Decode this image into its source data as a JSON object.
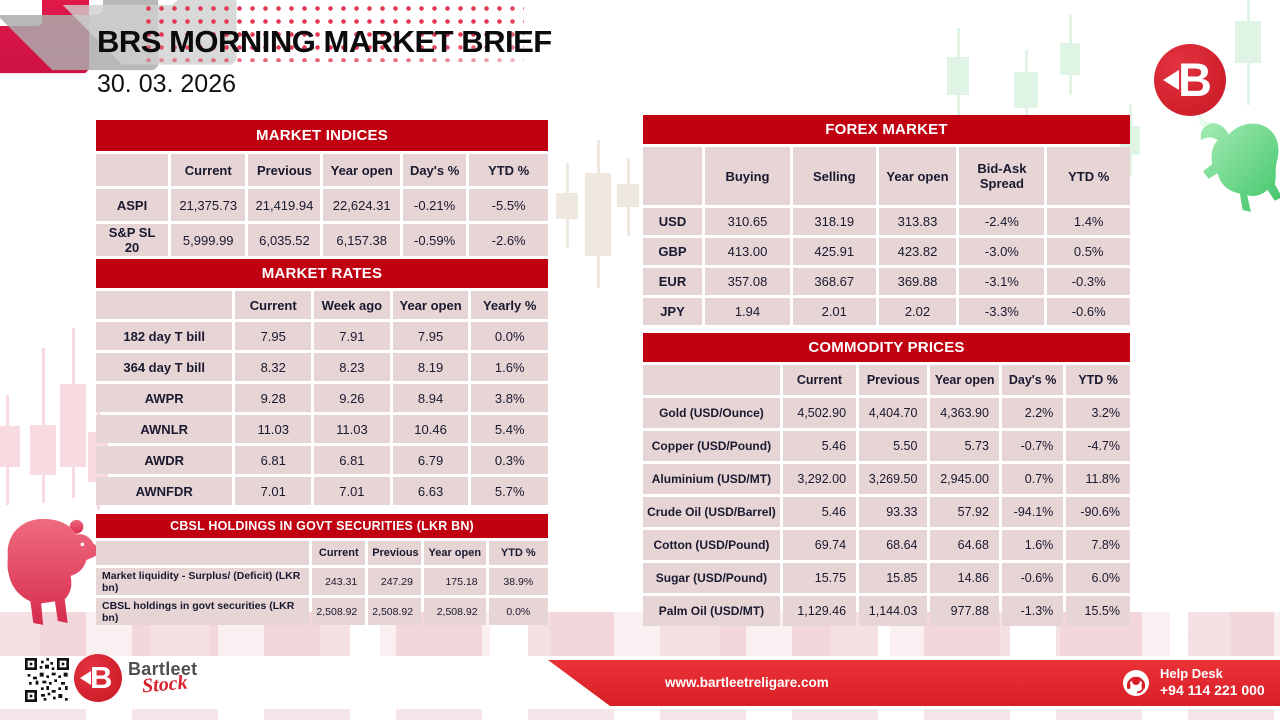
{
  "header": {
    "title": "BRS MORNING MARKET BRIEF",
    "date": "30. 03. 2026"
  },
  "tables": {
    "market_indices": {
      "title": "MARKET INDICES",
      "columns": [
        "",
        "Current",
        "Previous",
        "Year open",
        "Day's %",
        "YTD %"
      ],
      "rows": [
        {
          "label": "ASPI",
          "values": [
            "21,375.73",
            "21,419.94",
            "22,624.31",
            "-0.21%",
            "-5.5%"
          ]
        },
        {
          "label": "S&P SL 20",
          "values": [
            "5,999.99",
            "6,035.52",
            "6,157.38",
            "-0.59%",
            "-2.6%"
          ]
        }
      ]
    },
    "market_rates": {
      "title": "MARKET RATES",
      "columns": [
        "",
        "Current",
        "Week ago",
        "Year open",
        "Yearly %"
      ],
      "rows": [
        {
          "label": "182 day T bill",
          "values": [
            "7.95",
            "7.91",
            "7.95",
            "0.0%"
          ]
        },
        {
          "label": "364 day T bill",
          "values": [
            "8.32",
            "8.23",
            "8.19",
            "1.6%"
          ]
        },
        {
          "label": "AWPR",
          "values": [
            "9.28",
            "9.26",
            "8.94",
            "3.8%"
          ]
        },
        {
          "label": "AWNLR",
          "values": [
            "11.03",
            "11.03",
            "10.46",
            "5.4%"
          ]
        },
        {
          "label": "AWDR",
          "values": [
            "6.81",
            "6.81",
            "6.79",
            "0.3%"
          ]
        },
        {
          "label": "AWNFDR",
          "values": [
            "7.01",
            "7.01",
            "6.63",
            "5.7%"
          ]
        }
      ]
    },
    "cbsl": {
      "title": "CBSL HOLDINGS IN GOVT SECURITIES (LKR BN)",
      "columns": [
        "",
        "Current",
        "Previous",
        "Year open",
        "YTD %"
      ],
      "rows": [
        {
          "label": "Market liquidity - Surplus/ (Deficit) (LKR bn)",
          "values": [
            "243.31",
            "247.29",
            "175.18",
            "38.9%"
          ]
        },
        {
          "label": "CBSL holdings in govt securities (LKR bn)",
          "values": [
            "2,508.92",
            "2,508.92",
            "2,508.92",
            "0.0%"
          ]
        }
      ]
    },
    "forex": {
      "title": "FOREX MARKET",
      "columns": [
        "",
        "Buying",
        "Selling",
        "Year open",
        "Bid-Ask Spread",
        "YTD %"
      ],
      "rows": [
        {
          "label": "USD",
          "values": [
            "310.65",
            "318.19",
            "313.83",
            "-2.4%",
            "1.4%"
          ]
        },
        {
          "label": "GBP",
          "values": [
            "413.00",
            "425.91",
            "423.82",
            "-3.0%",
            "0.5%"
          ]
        },
        {
          "label": "EUR",
          "values": [
            "357.08",
            "368.67",
            "369.88",
            "-3.1%",
            "-0.3%"
          ]
        },
        {
          "label": "JPY",
          "values": [
            "1.94",
            "2.01",
            "2.02",
            "-3.3%",
            "-0.6%"
          ]
        }
      ]
    },
    "commodity": {
      "title": "COMMODITY PRICES",
      "columns": [
        "",
        "Current",
        "Previous",
        "Year open",
        "Day's %",
        "YTD %"
      ],
      "rows": [
        {
          "label": "Gold (USD/Ounce)",
          "values": [
            "4,502.90",
            "4,404.70",
            "4,363.90",
            "2.2%",
            "3.2%"
          ]
        },
        {
          "label": "Copper (USD/Pound)",
          "values": [
            "5.46",
            "5.50",
            "5.73",
            "-0.7%",
            "-4.7%"
          ]
        },
        {
          "label": "Aluminium (USD/MT)",
          "values": [
            "3,292.00",
            "3,269.50",
            "2,945.00",
            "0.7%",
            "11.8%"
          ]
        },
        {
          "label": "Crude Oil (USD/Barrel)",
          "values": [
            "5.46",
            "93.33",
            "57.92",
            "-94.1%",
            "-90.6%"
          ]
        },
        {
          "label": "Cotton (USD/Pound)",
          "values": [
            "69.74",
            "68.64",
            "64.68",
            "1.6%",
            "7.8%"
          ]
        },
        {
          "label": "Sugar (USD/Pound)",
          "values": [
            "15.75",
            "15.85",
            "14.86",
            "-0.6%",
            "6.0%"
          ]
        },
        {
          "label": "Palm Oil (USD/MT)",
          "values": [
            "1,129.46",
            "1,144.03",
            "977.88",
            "-1.3%",
            "15.5%"
          ]
        }
      ]
    }
  },
  "footer": {
    "brand_line1": "Bartleet",
    "brand_line2": "Stock",
    "website": "www.bartleetreligare.com",
    "help_label": "Help Desk",
    "help_phone": "+94 114 221 000"
  },
  "colors": {
    "table_header_red": "#c00010",
    "cell_pink": "#e7d4d4",
    "footer_red": "#e02228",
    "logo_red": "#d6222e",
    "bull_green": "#52cc74",
    "bear_rose": "#e0506a",
    "text_dark": "#191930"
  }
}
